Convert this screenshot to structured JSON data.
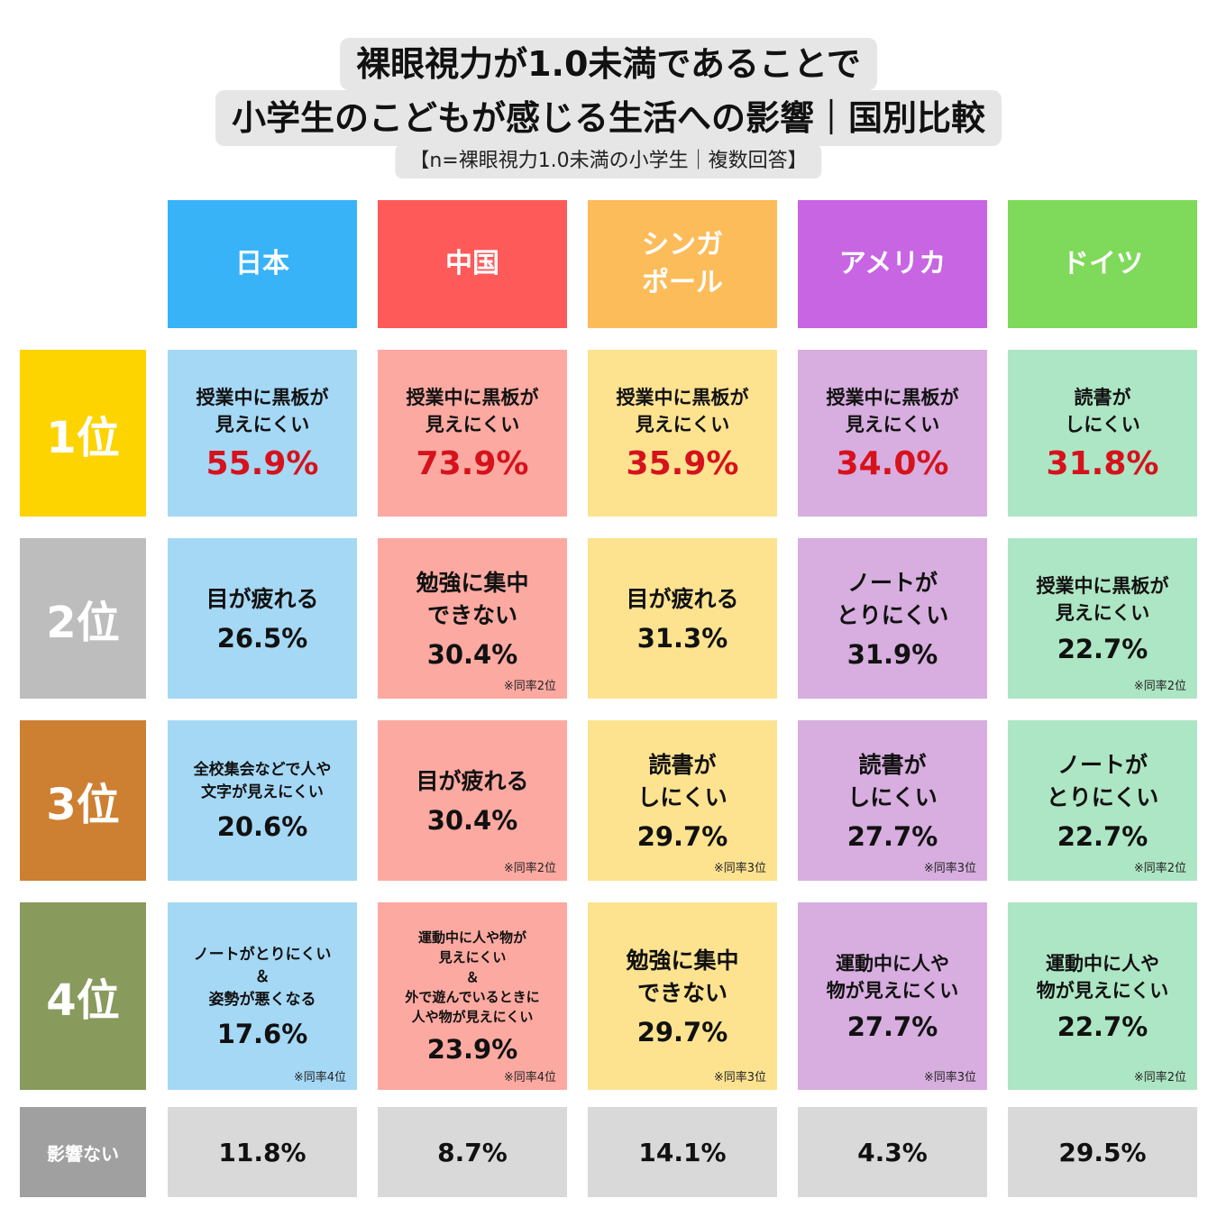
{
  "title": {
    "line1": "裸眼視力が1.0未満であることで",
    "line2": "小学生のこどもが感じる生活への影響｜国別比較",
    "subtitle": "【n=裸眼視力1.0未満の小学生｜複数回答】"
  },
  "colors": {
    "country_headers": [
      "#38b3f8",
      "#fe5a5a",
      "#fdbc5a",
      "#c865e3",
      "#7fd95a"
    ],
    "country_cells": [
      "#a5d8f5",
      "#fca9a1",
      "#fde390",
      "#d7aedf",
      "#ade6c4"
    ],
    "rank_colors": [
      "#fdd300",
      "#bdbdbd",
      "#cd7f32",
      "#889a5c",
      "#a0a0a0"
    ],
    "no_effect_cell": "#d9d9d9",
    "highlight_percent": "#d6121c"
  },
  "chart_data": {
    "type": "table",
    "countries": [
      "日本",
      "中国",
      "シンガ\nポール",
      "アメリカ",
      "ドイツ"
    ],
    "rank_labels": [
      "1位",
      "2位",
      "3位",
      "4位"
    ],
    "no_effect_label": "影響ない",
    "rows": [
      [
        {
          "label": "授業中に黒板が\n見えにくい",
          "value": "55.9%",
          "note": ""
        },
        {
          "label": "授業中に黒板が\n見えにくい",
          "value": "73.9%",
          "note": ""
        },
        {
          "label": "授業中に黒板が\n見えにくい",
          "value": "35.9%",
          "note": ""
        },
        {
          "label": "授業中に黒板が\n見えにくい",
          "value": "34.0%",
          "note": ""
        },
        {
          "label": "読書が\nしにくい",
          "value": "31.8%",
          "note": ""
        }
      ],
      [
        {
          "label": "目が疲れる",
          "value": "26.5%",
          "note": ""
        },
        {
          "label": "勉強に集中\nできない",
          "value": "30.4%",
          "note": "※同率2位"
        },
        {
          "label": "目が疲れる",
          "value": "31.3%",
          "note": ""
        },
        {
          "label": "ノートが\nとりにくい",
          "value": "31.9%",
          "note": ""
        },
        {
          "label": "授業中に黒板が\n見えにくい",
          "value": "22.7%",
          "note": "※同率2位"
        }
      ],
      [
        {
          "label": "全校集会などで人や\n文字が見えにくい",
          "value": "20.6%",
          "note": ""
        },
        {
          "label": "目が疲れる",
          "value": "30.4%",
          "note": "※同率2位"
        },
        {
          "label": "読書が\nしにくい",
          "value": "29.7%",
          "note": "※同率3位"
        },
        {
          "label": "読書が\nしにくい",
          "value": "27.7%",
          "note": "※同率3位"
        },
        {
          "label": "ノートが\nとりにくい",
          "value": "22.7%",
          "note": "※同率2位"
        }
      ],
      [
        {
          "label": "ノートがとりにくい\n＆\n姿勢が悪くなる",
          "value": "17.6%",
          "note": "※同率4位"
        },
        {
          "label": "運動中に人や物が\n見えにくい\n＆\n外で遊んでいるときに\n人や物が見えにくい",
          "value": "23.9%",
          "note": "※同率4位"
        },
        {
          "label": "勉強に集中\nできない",
          "value": "29.7%",
          "note": "※同率3位"
        },
        {
          "label": "運動中に人や\n物が見えにくい",
          "value": "27.7%",
          "note": "※同率3位"
        },
        {
          "label": "運動中に人や\n物が見えにくい",
          "value": "22.7%",
          "note": "※同率2位"
        }
      ]
    ],
    "no_effect_values": [
      "11.8%",
      "8.7%",
      "14.1%",
      "4.3%",
      "29.5%"
    ]
  }
}
